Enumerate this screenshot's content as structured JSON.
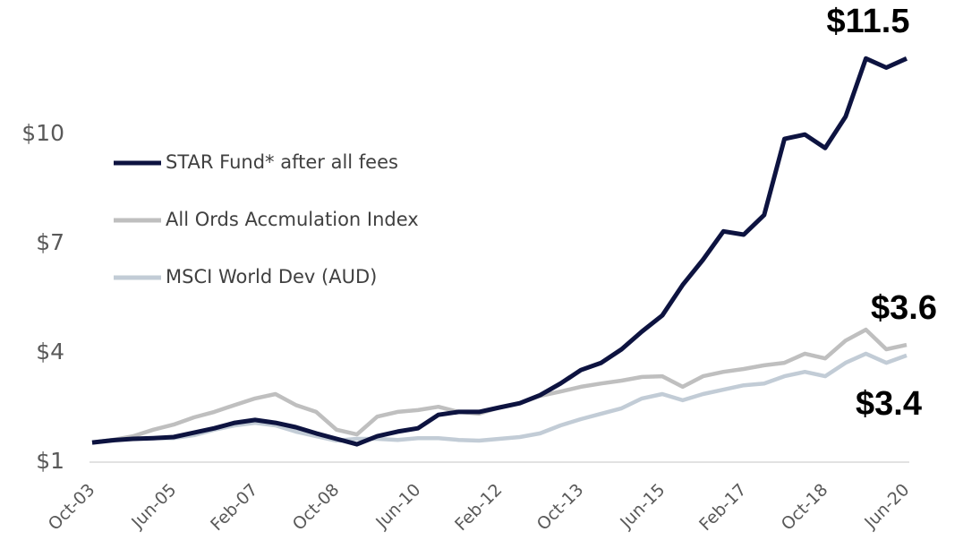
{
  "chart_data": {
    "type": "line",
    "categories": [
      "Oct-03",
      null,
      null,
      null,
      "Jun-05",
      null,
      null,
      null,
      "Feb-07",
      null,
      null,
      null,
      "Oct-08",
      null,
      null,
      null,
      "Jun-10",
      null,
      null,
      null,
      "Feb-12",
      null,
      null,
      null,
      "Oct-13",
      null,
      null,
      null,
      "Jun-15",
      null,
      null,
      null,
      "Feb-17",
      null,
      null,
      null,
      "Oct-18",
      null,
      null,
      null,
      "Jun-20"
    ],
    "series": [
      {
        "name": "STAR Fund* after all fees",
        "color": "#0d1340",
        "values": [
          1.54,
          1.6,
          1.64,
          1.66,
          1.69,
          1.81,
          1.93,
          2.08,
          2.16,
          2.08,
          1.96,
          1.79,
          1.64,
          1.49,
          1.71,
          1.84,
          1.93,
          2.3,
          2.38,
          2.38,
          2.5,
          2.62,
          2.84,
          3.16,
          3.53,
          3.73,
          4.1,
          4.59,
          5.03,
          5.87,
          6.56,
          7.34,
          7.25,
          7.79,
          9.88,
          10.0,
          9.63,
          10.49,
          12.09,
          11.84,
          12.09
        ]
      },
      {
        "name": "All Ords Accmulation Index",
        "color": "#bfbfbf",
        "values": [
          1.54,
          1.61,
          1.71,
          1.89,
          2.03,
          2.23,
          2.38,
          2.57,
          2.75,
          2.87,
          2.57,
          2.38,
          1.89,
          1.76,
          2.25,
          2.38,
          2.43,
          2.52,
          2.38,
          2.33,
          2.5,
          2.62,
          2.82,
          2.94,
          3.07,
          3.16,
          3.24,
          3.34,
          3.36,
          3.07,
          3.36,
          3.48,
          3.56,
          3.66,
          3.73,
          3.98,
          3.85,
          4.34,
          4.64,
          4.1,
          4.22
        ]
      },
      {
        "name": "MSCI World Dev (AUD)",
        "color": "#c2ccd6",
        "values": [
          1.54,
          1.61,
          1.64,
          1.66,
          1.66,
          1.74,
          1.89,
          2.01,
          2.08,
          2.01,
          1.84,
          1.71,
          1.59,
          1.64,
          1.64,
          1.61,
          1.66,
          1.66,
          1.61,
          1.59,
          1.64,
          1.69,
          1.79,
          2.01,
          2.18,
          2.33,
          2.48,
          2.75,
          2.87,
          2.7,
          2.87,
          2.99,
          3.11,
          3.16,
          3.36,
          3.48,
          3.36,
          3.73,
          3.98,
          3.73,
          3.93
        ]
      }
    ],
    "ylim": [
      1,
      13.5
    ],
    "yticks": [
      {
        "value": 1,
        "label": "$1"
      },
      {
        "value": 4,
        "label": "$4"
      },
      {
        "value": 7,
        "label": "$7"
      },
      {
        "value": 10,
        "label": "$10"
      }
    ],
    "annotations": [
      "$11.5",
      "$3.6",
      "$3.4"
    ]
  }
}
